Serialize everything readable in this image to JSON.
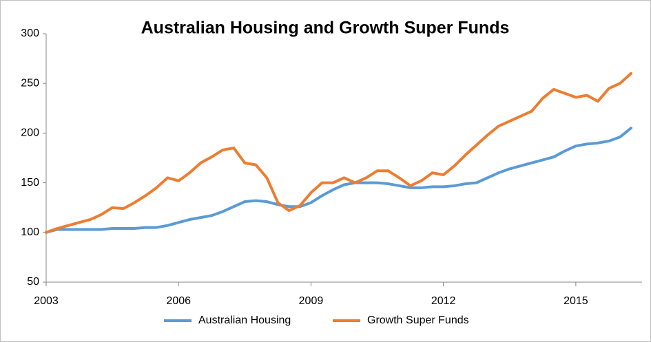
{
  "chart_data": {
    "type": "line",
    "title": "Australian Housing and Growth Super Funds",
    "x": [
      2003,
      2003.25,
      2003.5,
      2003.75,
      2004,
      2004.25,
      2004.5,
      2004.75,
      2005,
      2005.25,
      2005.5,
      2005.75,
      2006,
      2006.25,
      2006.5,
      2006.75,
      2007,
      2007.25,
      2007.5,
      2007.75,
      2008,
      2008.25,
      2008.5,
      2008.75,
      2009,
      2009.25,
      2009.5,
      2009.75,
      2010,
      2010.25,
      2010.5,
      2010.75,
      2011,
      2011.25,
      2011.5,
      2011.75,
      2012,
      2012.25,
      2012.5,
      2012.75,
      2013,
      2013.25,
      2013.5,
      2013.75,
      2014,
      2014.25,
      2014.5,
      2014.75,
      2015,
      2015.25,
      2015.5,
      2015.75,
      2016,
      2016.25
    ],
    "series": [
      {
        "name": "Australian Housing",
        "color": "#5b9bd5",
        "values": [
          100,
          103,
          103,
          103,
          103,
          103,
          104,
          104,
          104,
          105,
          105,
          107,
          110,
          113,
          115,
          117,
          121,
          126,
          131,
          132,
          131,
          128,
          126,
          126,
          130,
          137,
          143,
          148,
          150,
          150,
          150,
          149,
          147,
          145,
          145,
          146,
          146,
          147,
          149,
          150,
          155,
          160,
          164,
          167,
          170,
          173,
          176,
          182,
          187,
          189,
          190,
          192,
          196,
          205
        ]
      },
      {
        "name": "Growth Super Funds",
        "color": "#ed7d31",
        "values": [
          100,
          104,
          107,
          110,
          113,
          118,
          125,
          124,
          130,
          137,
          145,
          155,
          152,
          160,
          170,
          176,
          183,
          185,
          170,
          168,
          155,
          130,
          122,
          127,
          140,
          150,
          150,
          155,
          150,
          155,
          162,
          162,
          155,
          147,
          152,
          160,
          158,
          167,
          178,
          188,
          198,
          207,
          212,
          217,
          222,
          235,
          244,
          240,
          236,
          238,
          232,
          245,
          250,
          260
        ]
      }
    ],
    "xlim": [
      2003,
      2016.5
    ],
    "xticks": [
      2003,
      2006,
      2009,
      2012,
      2015
    ],
    "ylim": [
      50,
      300
    ],
    "yticks": [
      50,
      100,
      150,
      200,
      250,
      300
    ],
    "grid": false,
    "legend": "bottom"
  }
}
